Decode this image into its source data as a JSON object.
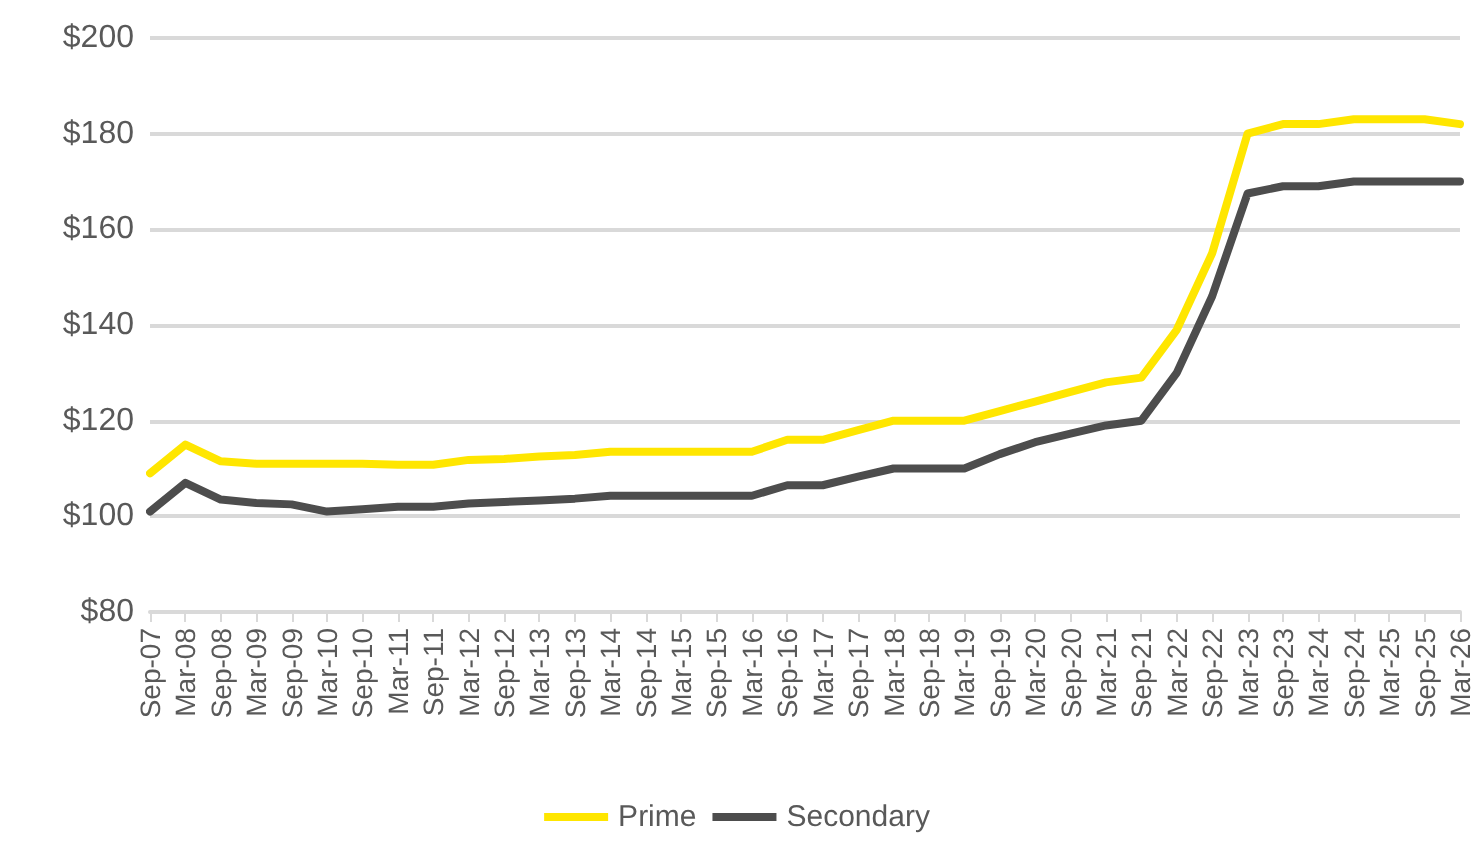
{
  "chart_data": {
    "type": "line",
    "categories": [
      "Sep-07",
      "Mar-08",
      "Sep-08",
      "Mar-09",
      "Sep-09",
      "Mar-10",
      "Sep-10",
      "Mar-11",
      "Sep-11",
      "Mar-12",
      "Sep-12",
      "Mar-13",
      "Sep-13",
      "Mar-14",
      "Sep-14",
      "Mar-15",
      "Sep-15",
      "Mar-16",
      "Sep-16",
      "Mar-17",
      "Sep-17",
      "Mar-18",
      "Sep-18",
      "Mar-19",
      "Sep-19",
      "Mar-20",
      "Sep-20",
      "Mar-21",
      "Sep-21",
      "Mar-22",
      "Sep-22",
      "Mar-23",
      "Sep-23",
      "Mar-24",
      "Sep-24",
      "Mar-25",
      "Sep-25",
      "Mar-26"
    ],
    "series": [
      {
        "name": "Prime",
        "color": "#ffe600",
        "values": [
          109,
          115,
          111.5,
          111,
          111,
          111,
          111,
          110.8,
          110.8,
          111.8,
          112,
          112.5,
          112.8,
          113.5,
          113.5,
          113.5,
          113.5,
          113.5,
          116,
          116,
          118,
          120,
          120,
          120,
          122,
          124,
          126,
          128,
          129,
          139,
          155,
          180,
          182,
          182,
          183,
          183,
          183,
          182
        ]
      },
      {
        "name": "Secondary",
        "color": "#4d4d4d",
        "values": [
          101,
          107,
          103.5,
          102.8,
          102.5,
          101,
          101.5,
          102,
          102,
          102.7,
          103,
          103.3,
          103.7,
          104.3,
          104.3,
          104.3,
          104.3,
          104.3,
          106.5,
          106.5,
          108.3,
          110,
          110,
          110,
          113,
          115.5,
          117.3,
          119,
          120,
          130,
          146,
          167.5,
          169,
          169,
          170,
          170,
          170,
          170
        ]
      }
    ],
    "ylim": [
      80,
      200
    ],
    "yticks": [
      {
        "value": 80,
        "label": "$80"
      },
      {
        "value": 100,
        "label": "$100"
      },
      {
        "value": 120,
        "label": "$120"
      },
      {
        "value": 140,
        "label": "$140"
      },
      {
        "value": 160,
        "label": "$160"
      },
      {
        "value": 180,
        "label": "$180"
      },
      {
        "value": 200,
        "label": "$200"
      }
    ],
    "grid": "y",
    "legend": "bottom",
    "marker": "none",
    "line_style": "solid"
  }
}
